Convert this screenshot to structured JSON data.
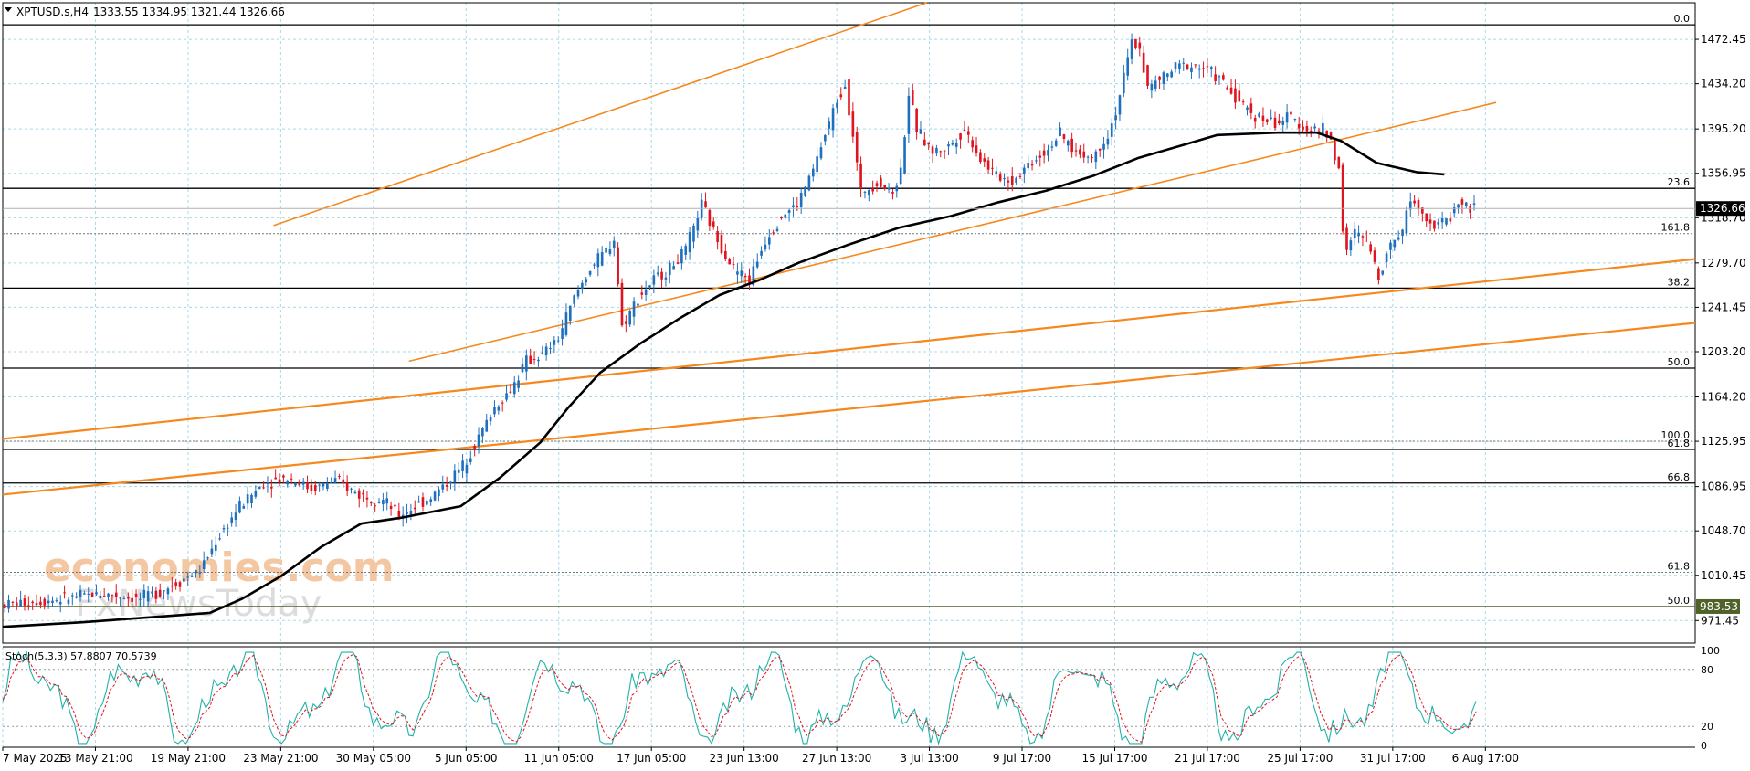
{
  "header": {
    "symbol": "XPTUSD.s,H4",
    "ohlc": "1333.55 1334.95 1321.44 1326.66"
  },
  "watermark": {
    "line1": "economies.com",
    "line2": "FxNewsToday"
  },
  "colors": {
    "bull": "#1f6fbf",
    "bear": "#e0141e",
    "ma": "#000000",
    "channel": "#f5891f",
    "grid": "#a8d8e8",
    "stoch_main": "#20b2aa",
    "stoch_signal": "#e0141e",
    "price_tag": "#000000",
    "level_tag": "#4f6228"
  },
  "chart_data": {
    "type": "candlestick",
    "symbol": "XPTUSD.s",
    "timeframe": "H4",
    "y_range": [
      952,
      1504
    ],
    "y_ticks": [
      "1472.45",
      "1434.20",
      "1395.20",
      "1356.95",
      "1318.70",
      "1279.70",
      "1241.45",
      "1203.20",
      "1164.20",
      "1125.95",
      "1086.95",
      "1048.70",
      "1010.45",
      "971.45"
    ],
    "x_ticks": [
      "7 May 2025",
      "13 May 21:00",
      "19 May 21:00",
      "23 May 21:00",
      "30 May 05:00",
      "5 Jun 05:00",
      "11 Jun 05:00",
      "17 Jun 05:00",
      "23 Jun 13:00",
      "27 Jun 13:00",
      "3 Jul 13:00",
      "9 Jul 17:00",
      "15 Jul 17:00",
      "21 Jul 17:00",
      "25 Jul 17:00",
      "31 Jul 17:00",
      "6 Aug 17:00"
    ],
    "current_price": "1326.66",
    "level_tag": "983.53",
    "price_path": [
      [
        0,
        985
      ],
      [
        15,
        990
      ],
      [
        25,
        995
      ],
      [
        35,
        990
      ],
      [
        42,
        1000
      ],
      [
        50,
        1015
      ],
      [
        55,
        1045
      ],
      [
        60,
        1070
      ],
      [
        66,
        1090
      ],
      [
        72,
        1095
      ],
      [
        78,
        1085
      ],
      [
        84,
        1092
      ],
      [
        90,
        1080
      ],
      [
        96,
        1075
      ],
      [
        100,
        1062
      ],
      [
        104,
        1070
      ],
      [
        108,
        1078
      ],
      [
        112,
        1090
      ],
      [
        116,
        1105
      ],
      [
        120,
        1130
      ],
      [
        124,
        1155
      ],
      [
        128,
        1170
      ],
      [
        132,
        1195
      ],
      [
        136,
        1200
      ],
      [
        140,
        1215
      ],
      [
        144,
        1250
      ],
      [
        148,
        1275
      ],
      [
        152,
        1290
      ],
      [
        154,
        1300
      ],
      [
        156,
        1225
      ],
      [
        160,
        1250
      ],
      [
        164,
        1265
      ],
      [
        168,
        1275
      ],
      [
        172,
        1290
      ],
      [
        176,
        1330
      ],
      [
        180,
        1300
      ],
      [
        184,
        1275
      ],
      [
        188,
        1265
      ],
      [
        192,
        1300
      ],
      [
        196,
        1320
      ],
      [
        200,
        1330
      ],
      [
        204,
        1360
      ],
      [
        208,
        1400
      ],
      [
        210,
        1420
      ],
      [
        212,
        1435
      ],
      [
        214,
        1390
      ],
      [
        216,
        1340
      ],
      [
        220,
        1350
      ],
      [
        224,
        1340
      ],
      [
        226,
        1360
      ],
      [
        228,
        1425
      ],
      [
        230,
        1395
      ],
      [
        234,
        1375
      ],
      [
        238,
        1380
      ],
      [
        242,
        1395
      ],
      [
        246,
        1370
      ],
      [
        250,
        1355
      ],
      [
        254,
        1350
      ],
      [
        258,
        1365
      ],
      [
        262,
        1375
      ],
      [
        266,
        1390
      ],
      [
        270,
        1375
      ],
      [
        274,
        1370
      ],
      [
        278,
        1390
      ],
      [
        280,
        1410
      ],
      [
        282,
        1440
      ],
      [
        284,
        1470
      ],
      [
        286,
        1465
      ],
      [
        288,
        1430
      ],
      [
        292,
        1440
      ],
      [
        296,
        1450
      ],
      [
        300,
        1450
      ],
      [
        304,
        1445
      ],
      [
        308,
        1430
      ],
      [
        312,
        1415
      ],
      [
        316,
        1405
      ],
      [
        320,
        1400
      ],
      [
        324,
        1405
      ],
      [
        328,
        1395
      ],
      [
        332,
        1395
      ],
      [
        334,
        1385
      ],
      [
        336,
        1360
      ],
      [
        337,
        1310
      ],
      [
        338,
        1290
      ],
      [
        340,
        1305
      ],
      [
        343,
        1300
      ],
      [
        346,
        1268
      ],
      [
        348,
        1290
      ],
      [
        352,
        1310
      ],
      [
        354,
        1335
      ],
      [
        357,
        1325
      ],
      [
        360,
        1310
      ],
      [
        362,
        1315
      ],
      [
        364,
        1320
      ],
      [
        366,
        1332
      ],
      [
        368,
        1328
      ],
      [
        370,
        1326.66
      ]
    ],
    "moving_average": [
      [
        0,
        966
      ],
      [
        20,
        970
      ],
      [
        40,
        975
      ],
      [
        52,
        978
      ],
      [
        60,
        990
      ],
      [
        70,
        1010
      ],
      [
        80,
        1035
      ],
      [
        90,
        1055
      ],
      [
        100,
        1060
      ],
      [
        115,
        1070
      ],
      [
        125,
        1095
      ],
      [
        135,
        1125
      ],
      [
        142,
        1155
      ],
      [
        150,
        1185
      ],
      [
        160,
        1210
      ],
      [
        170,
        1232
      ],
      [
        180,
        1252
      ],
      [
        190,
        1265
      ],
      [
        200,
        1280
      ],
      [
        212,
        1295
      ],
      [
        225,
        1310
      ],
      [
        238,
        1320
      ],
      [
        250,
        1332
      ],
      [
        262,
        1342
      ],
      [
        274,
        1355
      ],
      [
        285,
        1370
      ],
      [
        295,
        1380
      ],
      [
        305,
        1390
      ],
      [
        320,
        1392
      ],
      [
        330,
        1392
      ],
      [
        336,
        1385
      ],
      [
        345,
        1366
      ],
      [
        355,
        1358
      ],
      [
        362,
        1356
      ]
    ],
    "channel_lines": [
      {
        "name": "",
        "from": [
          68,
          1312
        ],
        "to": [
          232,
          1504
        ]
      },
      {
        "name": "",
        "from": [
          102,
          1195
        ],
        "to": [
          375,
          1418
        ]
      },
      {
        "name": "",
        "from": [
          0,
          1128
        ],
        "to": [
          425,
          1283
        ]
      },
      {
        "name": "",
        "from": [
          0,
          1080
        ],
        "to": [
          425,
          1228
        ]
      }
    ],
    "fib_levels": [
      {
        "label": "0.0",
        "value": 1485,
        "style": "solid"
      },
      {
        "label": "23.6",
        "value": 1344,
        "style": "solid"
      },
      {
        "label": "161.8",
        "value": 1305,
        "style": "dotted"
      },
      {
        "label": "38.2",
        "value": 1258,
        "style": "solid"
      },
      {
        "label": "50.0",
        "value": 1189,
        "style": "solid"
      },
      {
        "label": "100.0",
        "value": 1126,
        "style": "dotted"
      },
      {
        "label": "61.8",
        "value": 1119,
        "style": "solid"
      },
      {
        "label": "66.8",
        "value": 1090,
        "style": "solid"
      },
      {
        "label": "61.8",
        "value": 1013,
        "style": "dotted"
      },
      {
        "label": "50.0",
        "value": 983.53,
        "style": "solid-green"
      }
    ],
    "stochastic": {
      "label": "Stoch(5,3,3) 57.8807 70.5739",
      "main_value": "57.8807",
      "signal_value": "70.5739",
      "y_range": [
        0,
        100
      ],
      "ticks": [
        "100",
        "80",
        "20",
        "0"
      ]
    }
  }
}
